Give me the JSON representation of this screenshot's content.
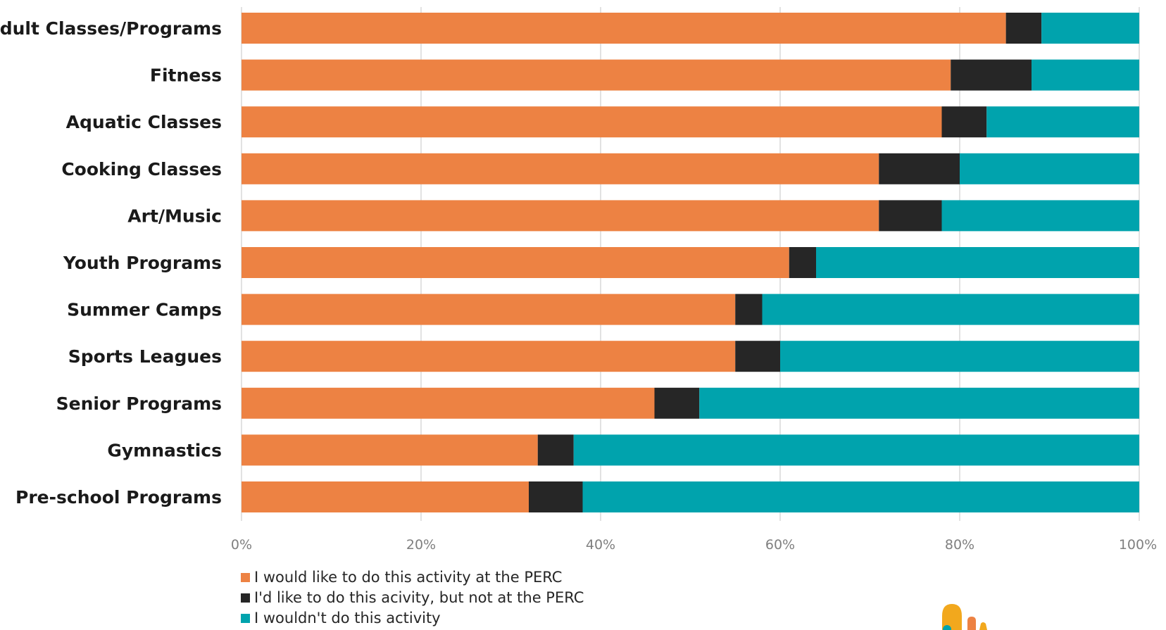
{
  "chart_data": {
    "type": "bar",
    "orientation": "horizontal",
    "stacked": "percent",
    "categories": [
      "Adult Classes/Programs",
      "Fitness",
      "Aquatic Classes",
      "Cooking Classes",
      "Art/Music",
      "Youth Programs",
      "Summer Camps",
      "Sports Leagues",
      "Senior Programs",
      "Gymnastics",
      "Pre-school Programs"
    ],
    "series": [
      {
        "name": "I would like to do this activity at the PERC",
        "color": "#ED8243",
        "values": [
          86,
          79,
          78,
          71,
          71,
          61,
          55,
          55,
          46,
          33,
          32
        ]
      },
      {
        "name": "I'd like to do this acivity, but not at the PERC",
        "color": "#262626",
        "values": [
          4,
          9,
          5,
          9,
          7,
          3,
          3,
          5,
          5,
          4,
          6
        ]
      },
      {
        "name": "I wouldn't do this activity",
        "color": "#00A3AD",
        "values": [
          11,
          12,
          17,
          20,
          22,
          36,
          42,
          40,
          49,
          63,
          62
        ]
      }
    ],
    "xlim": [
      0,
      100
    ],
    "xticks": [
      "0%",
      "20%",
      "40%",
      "60%",
      "80%",
      "100%"
    ],
    "grid": true,
    "legend_position": "bottom-left"
  },
  "logo": {
    "colors": [
      "#F2A81D",
      "#ED8243",
      "#00A3AD"
    ]
  }
}
